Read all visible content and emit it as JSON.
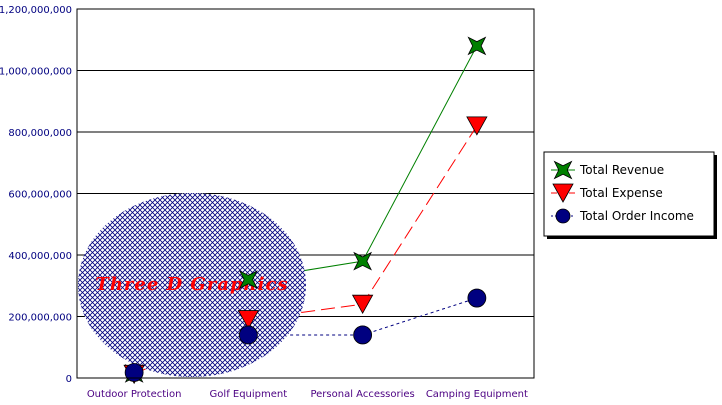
{
  "chart_data": {
    "type": "line",
    "categories": [
      "Outdoor Protection",
      "Golf Equipment",
      "Personal Accessories",
      "Camping Equipment"
    ],
    "series": [
      {
        "name": "Total Revenue",
        "values": [
          15000000,
          320000000,
          380000000,
          1080000000
        ],
        "color": "#008000",
        "marker": "star",
        "line": "solid"
      },
      {
        "name": "Total Expense",
        "values": [
          12000000,
          190000000,
          240000000,
          820000000
        ],
        "color": "#ff0000",
        "marker": "triangle-down",
        "line": "dashed"
      },
      {
        "name": "Total Order Income",
        "values": [
          18000000,
          140000000,
          140000000,
          260000000
        ],
        "color": "#000080",
        "marker": "circle",
        "line": "dotted"
      }
    ],
    "y_ticks": [
      "0",
      "200,000,000",
      "400,000,000",
      "600,000,000",
      "800,000,000",
      "1,000,000,000",
      "1,200,000,000"
    ],
    "ylim": [
      0,
      1200000000
    ],
    "grid": true,
    "legend_position": "right",
    "watermark_text": "Three  D  Graphics",
    "watermark_color": "#000080",
    "title": "",
    "xlabel": "",
    "ylabel": ""
  }
}
